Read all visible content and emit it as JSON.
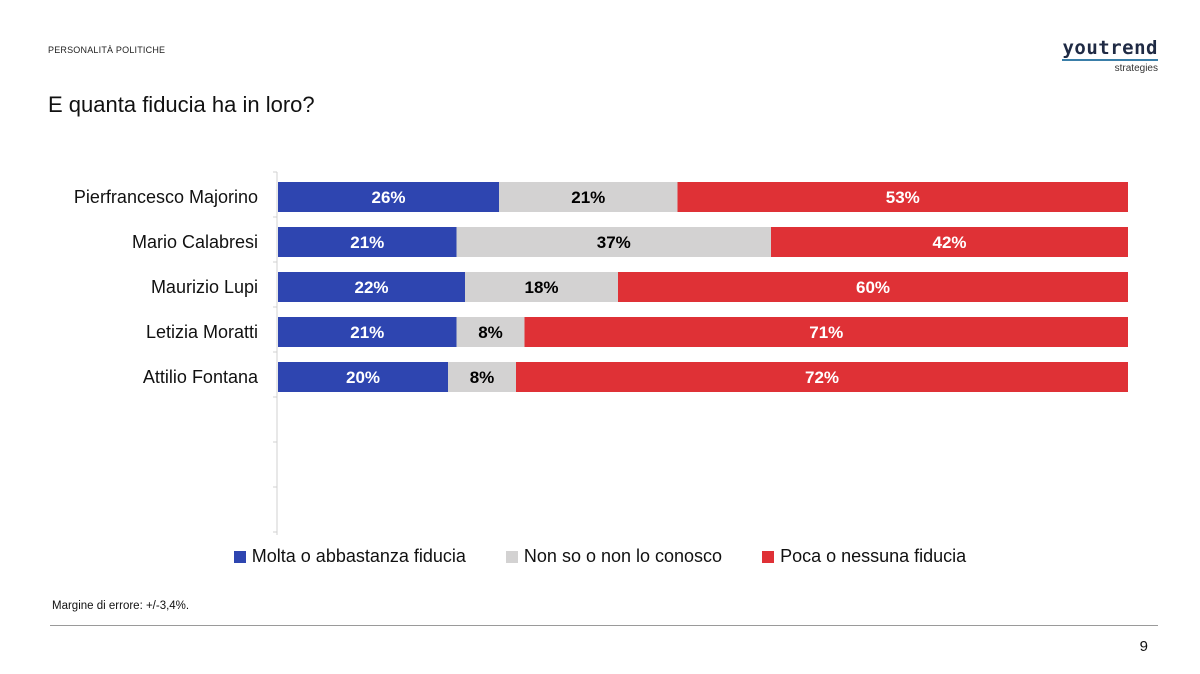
{
  "header": {
    "section": "PERSONALITÀ POLITICHE",
    "brand_name": "youtrend",
    "brand_sub": "strategies"
  },
  "title": "E quanta fiducia ha in loro?",
  "colors": {
    "blue": "#2e45b0",
    "grey": "#d3d2d2",
    "red": "#df3136"
  },
  "chart_data": {
    "type": "bar",
    "orientation": "horizontal",
    "stacked": true,
    "percent_stacked": true,
    "categories": [
      "Pierfrancesco Majorino",
      "Mario Calabresi",
      "Maurizio Lupi",
      "Letizia Moratti",
      "Attilio Fontana"
    ],
    "series": [
      {
        "name": "Molta o abbastanza fiducia",
        "color": "#2e45b0",
        "label_color": "#ffffff",
        "values": [
          26,
          21,
          22,
          21,
          20
        ]
      },
      {
        "name": "Non so o non lo conosco",
        "color": "#d3d2d2",
        "label_color": "#000000",
        "values": [
          21,
          37,
          18,
          8,
          8
        ]
      },
      {
        "name": "Poca o nessuna fiducia",
        "color": "#df3136",
        "label_color": "#ffffff",
        "values": [
          53,
          42,
          60,
          71,
          72
        ]
      }
    ],
    "data_labels": [
      [
        "26%",
        "21%",
        "53%"
      ],
      [
        "21%",
        "37%",
        "42%"
      ],
      [
        "22%",
        "18%",
        "60%"
      ],
      [
        "21%",
        "8%",
        "71%"
      ],
      [
        "20%",
        "8%",
        "72%"
      ]
    ],
    "xlim": [
      0,
      100
    ],
    "legend_position": "bottom",
    "grid": false
  },
  "legend": {
    "items": [
      {
        "label": "Molta o abbastanza fiducia",
        "color": "#2e45b0"
      },
      {
        "label": "Non so o non lo conosco",
        "color": "#d3d2d2"
      },
      {
        "label": "Poca o nessuna fiducia",
        "color": "#df3136"
      }
    ]
  },
  "footnote": "Margine di errore: +/-3,4%.",
  "page_number": "9"
}
